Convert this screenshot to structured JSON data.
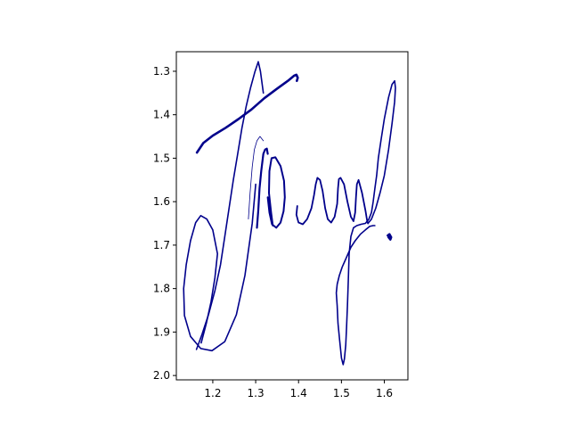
{
  "chart_data": {
    "type": "line",
    "title": "",
    "xlabel": "",
    "ylabel": "",
    "xlim": [
      1.115,
      1.655
    ],
    "ylim": [
      2.01,
      1.255
    ],
    "y_inverted": true,
    "grid": false,
    "legend": "none",
    "x_ticks": [
      1.2,
      1.3,
      1.4,
      1.5,
      1.6
    ],
    "x_tick_labels": [
      "1.2",
      "1.3",
      "1.4",
      "1.5",
      "1.6"
    ],
    "y_ticks": [
      1.3,
      1.4,
      1.5,
      1.6,
      1.7,
      1.8,
      1.9,
      2.0
    ],
    "y_tick_labels": [
      "1.3",
      "1.4",
      "1.5",
      "1.6",
      "1.7",
      "1.8",
      "1.9",
      "2.0"
    ],
    "line_color": "#00008b",
    "series": [
      {
        "x": [
          1.163,
          1.178,
          1.2,
          1.23,
          1.26,
          1.29,
          1.32,
          1.35,
          1.375,
          1.39,
          1.395,
          1.398,
          1.396
        ],
        "y": [
          1.487,
          1.465,
          1.448,
          1.43,
          1.41,
          1.388,
          1.362,
          1.34,
          1.322,
          1.31,
          1.308,
          1.315,
          1.322
        ]
      },
      {
        "x": [
          1.162,
          1.175,
          1.19,
          1.205,
          1.218,
          1.228,
          1.238,
          1.248,
          1.258,
          1.268,
          1.278,
          1.288,
          1.298,
          1.306,
          1.311,
          1.318
        ],
        "y": [
          1.94,
          1.905,
          1.86,
          1.805,
          1.745,
          1.68,
          1.615,
          1.55,
          1.49,
          1.43,
          1.38,
          1.338,
          1.302,
          1.278,
          1.3,
          1.35
        ]
      },
      {
        "x": [
          1.173,
          1.185,
          1.196,
          1.205,
          1.211,
          1.2,
          1.186,
          1.172,
          1.16,
          1.148,
          1.138,
          1.132,
          1.134,
          1.148,
          1.172,
          1.198,
          1.228,
          1.255,
          1.275,
          1.292,
          1.3
        ],
        "y": [
          1.925,
          1.88,
          1.83,
          1.775,
          1.72,
          1.665,
          1.64,
          1.632,
          1.648,
          1.69,
          1.745,
          1.8,
          1.862,
          1.91,
          1.938,
          1.943,
          1.922,
          1.86,
          1.77,
          1.65,
          1.56
        ]
      },
      {
        "x": [
          1.283,
          1.287,
          1.292,
          1.297,
          1.303,
          1.31,
          1.318
        ],
        "y": [
          1.64,
          1.58,
          1.52,
          1.48,
          1.46,
          1.45,
          1.46
        ]
      },
      {
        "x": [
          1.303,
          1.306,
          1.309,
          1.313,
          1.318,
          1.322,
          1.326,
          1.328
        ],
        "y": [
          1.66,
          1.62,
          1.57,
          1.53,
          1.49,
          1.48,
          1.478,
          1.49
        ]
      },
      {
        "x": [
          1.328,
          1.332,
          1.338,
          1.348,
          1.358,
          1.365,
          1.368,
          1.366,
          1.358,
          1.346,
          1.337,
          1.332,
          1.331,
          1.336,
          1.34
        ],
        "y": [
          1.59,
          1.625,
          1.652,
          1.66,
          1.648,
          1.622,
          1.59,
          1.552,
          1.518,
          1.498,
          1.5,
          1.53,
          1.58,
          1.625,
          1.655
        ]
      },
      {
        "x": [
          1.397,
          1.395,
          1.4,
          1.41,
          1.42,
          1.43,
          1.436,
          1.44,
          1.444,
          1.45,
          1.456,
          1.462,
          1.468,
          1.476,
          1.484,
          1.49,
          1.492,
          1.494,
          1.498,
          1.506,
          1.514,
          1.522,
          1.528,
          1.532,
          1.534,
          1.536,
          1.54,
          1.548,
          1.556,
          1.56,
          1.562
        ],
        "y": [
          1.61,
          1.63,
          1.648,
          1.652,
          1.64,
          1.615,
          1.585,
          1.56,
          1.545,
          1.55,
          1.575,
          1.615,
          1.64,
          1.648,
          1.635,
          1.605,
          1.57,
          1.548,
          1.545,
          1.56,
          1.6,
          1.635,
          1.645,
          1.625,
          1.59,
          1.56,
          1.55,
          1.58,
          1.62,
          1.645,
          1.65
        ]
      },
      {
        "x": [
          1.562,
          1.57,
          1.58,
          1.59,
          1.6,
          1.61,
          1.618,
          1.624,
          1.626,
          1.624,
          1.618,
          1.61,
          1.6,
          1.592,
          1.586,
          1.582,
          1.578,
          1.574,
          1.57,
          1.564,
          1.556,
          1.546,
          1.536,
          1.528,
          1.522,
          1.518,
          1.516,
          1.514,
          1.512,
          1.51,
          1.507,
          1.504,
          1.5,
          1.496,
          1.492,
          1.49,
          1.488,
          1.49,
          1.495,
          1.502,
          1.512,
          1.522,
          1.532,
          1.544,
          1.556,
          1.566,
          1.574,
          1.578
        ],
        "y": [
          1.65,
          1.64,
          1.615,
          1.58,
          1.54,
          1.48,
          1.42,
          1.37,
          1.338,
          1.322,
          1.33,
          1.36,
          1.41,
          1.46,
          1.5,
          1.54,
          1.57,
          1.6,
          1.625,
          1.64,
          1.65,
          1.652,
          1.655,
          1.66,
          1.68,
          1.72,
          1.78,
          1.84,
          1.89,
          1.93,
          1.962,
          1.975,
          1.96,
          1.92,
          1.88,
          1.84,
          1.81,
          1.79,
          1.77,
          1.75,
          1.728,
          1.705,
          1.69,
          1.675,
          1.665,
          1.657,
          1.655,
          1.655
        ]
      },
      {
        "x": [
          1.608,
          1.612,
          1.616,
          1.614,
          1.61
        ],
        "y": [
          1.678,
          1.675,
          1.682,
          1.687,
          1.682
        ]
      }
    ]
  }
}
